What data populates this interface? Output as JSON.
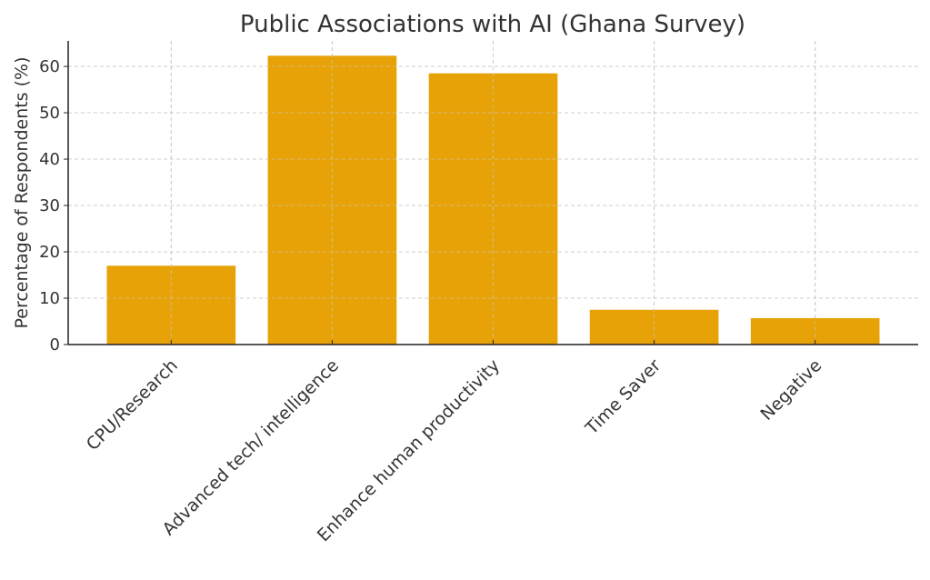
{
  "chart_data": {
    "type": "bar",
    "title": "Public Associations with AI (Ghana Survey)",
    "xlabel": "",
    "ylabel": "Percentage of Respondents (%)",
    "categories": [
      "CPU/Research",
      "Advanced tech/ intelligence",
      "Enhance human productivity",
      "Time Saver",
      "Negative"
    ],
    "values": [
      17.0,
      62.3,
      58.5,
      7.5,
      5.7
    ],
    "ylim": [
      0,
      65.5
    ],
    "yticks": [
      0,
      10,
      20,
      30,
      40,
      50,
      60
    ],
    "grid": true,
    "bar_color": "#E69F00"
  }
}
